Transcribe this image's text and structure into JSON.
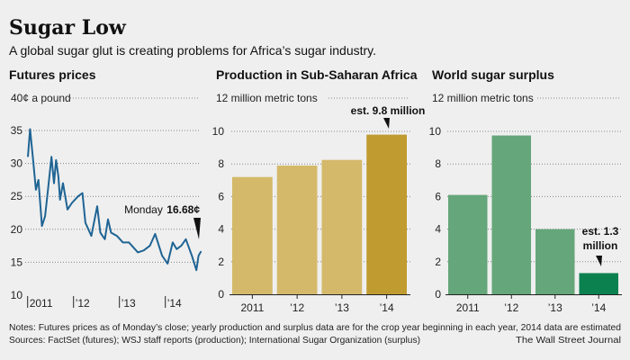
{
  "header": {
    "title": "Sugar Low",
    "subtitle": "A global sugar glut is creating problems for Africa’s sugar industry."
  },
  "footer": {
    "notes": "Notes: Futures prices as of Monday’s close; yearly production and surplus data are for the crop year beginning in each year, 2014 data are estimated",
    "sources": "Sources: FactSet (futures); WSJ staff reports (production); International Sugar Organization (surplus)",
    "credit": "The Wall Street Journal"
  },
  "chart_data": [
    {
      "type": "line",
      "title": "Futures prices",
      "ylabel": "40¢ a pound",
      "ylim": [
        10,
        40
      ],
      "yticks": [
        "35",
        "30",
        "25",
        "20",
        "15",
        "10"
      ],
      "xticks": [
        "2011",
        "’12",
        "’13",
        "’14"
      ],
      "grid": true,
      "color": "#1f6494",
      "annotation": {
        "label": "Monday",
        "value": "16.68¢"
      },
      "points": [
        [
          "2011-01-03",
          31.0
        ],
        [
          "2011-01-20",
          35.2
        ],
        [
          "2011-02-14",
          30.5
        ],
        [
          "2011-03-08",
          26.0
        ],
        [
          "2011-03-28",
          27.5
        ],
        [
          "2011-04-25",
          20.5
        ],
        [
          "2011-05-20",
          22.0
        ],
        [
          "2011-06-12",
          26.0
        ],
        [
          "2011-07-10",
          31.0
        ],
        [
          "2011-07-30",
          27.0
        ],
        [
          "2011-08-15",
          30.5
        ],
        [
          "2011-09-03",
          28.0
        ],
        [
          "2011-09-16",
          24.5
        ],
        [
          "2011-10-09",
          27.0
        ],
        [
          "2011-11-14",
          23.0
        ],
        [
          "2011-12-19",
          24.0
        ],
        [
          "2012-02-06",
          25.0
        ],
        [
          "2012-03-12",
          25.5
        ],
        [
          "2012-04-05",
          21.0
        ],
        [
          "2012-05-22",
          19.0
        ],
        [
          "2012-07-08",
          23.5
        ],
        [
          "2012-08-02",
          19.5
        ],
        [
          "2012-09-07",
          18.5
        ],
        [
          "2012-10-02",
          21.5
        ],
        [
          "2012-10-26",
          19.5
        ],
        [
          "2012-12-12",
          19.0
        ],
        [
          "2013-01-29",
          18.0
        ],
        [
          "2013-03-18",
          18.0
        ],
        [
          "2013-05-28",
          16.5
        ],
        [
          "2013-07-14",
          16.8
        ],
        [
          "2013-08-31",
          17.5
        ],
        [
          "2013-10-12",
          19.3
        ],
        [
          "2013-12-06",
          16.0
        ],
        [
          "2014-01-19",
          14.8
        ],
        [
          "2014-03-01",
          18.0
        ],
        [
          "2014-04-01",
          17.0
        ],
        [
          "2014-05-08",
          17.5
        ],
        [
          "2014-06-13",
          18.5
        ],
        [
          "2014-07-31",
          16.0
        ],
        [
          "2014-09-05",
          13.8
        ],
        [
          "2014-09-22",
          16.0
        ],
        [
          "2014-10-13",
          16.68
        ]
      ]
    },
    {
      "type": "bar",
      "title": "Production in Sub-Saharan Africa",
      "ylabel": "12 million metric tons",
      "ylim": [
        0,
        12
      ],
      "yticks": [
        "10",
        "8",
        "6",
        "4",
        "2",
        "0"
      ],
      "categories": [
        "2011",
        "’12",
        "’13",
        "’14"
      ],
      "values": [
        7.2,
        7.9,
        8.25,
        9.8
      ],
      "colors": [
        "#d4b96a",
        "#d4b96a",
        "#d4b96a",
        "#bf9b30"
      ],
      "grid": true,
      "annotation": "est. 9.8 million"
    },
    {
      "type": "bar",
      "title": "World sugar surplus",
      "ylabel": "12 million metric tons",
      "ylim": [
        0,
        12
      ],
      "yticks": [
        "10",
        "8",
        "6",
        "4",
        "2",
        "0"
      ],
      "categories": [
        "2011",
        "’12",
        "’13",
        "’14"
      ],
      "values": [
        6.1,
        9.75,
        4.0,
        1.3
      ],
      "colors": [
        "#65a67a",
        "#65a67a",
        "#65a67a",
        "#0b8150"
      ],
      "grid": true,
      "annotation": [
        "est. 1.3",
        "million"
      ]
    }
  ]
}
